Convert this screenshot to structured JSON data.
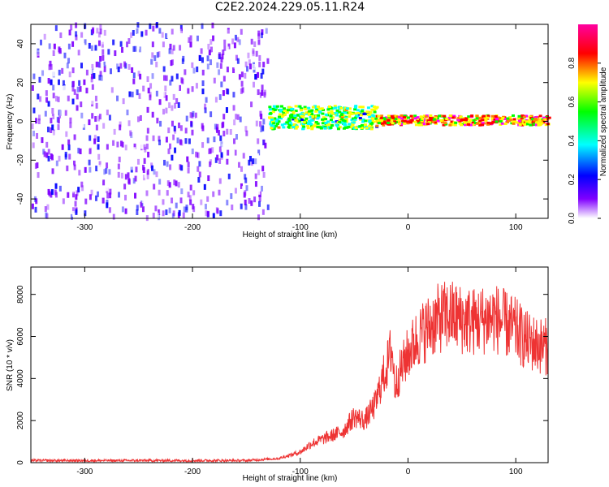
{
  "title": "C2E2.2024.229.05.11.R24",
  "chart_data": [
    {
      "type": "heatmap",
      "xlabel": "Height of straight line (km)",
      "ylabel": "Frequency (Hz)",
      "xlim": [
        -350,
        130
      ],
      "ylim": [
        -50,
        50
      ],
      "x_ticks": [
        -300,
        -200,
        -100,
        0,
        100
      ],
      "y_ticks": [
        -40,
        -20,
        0,
        20,
        40
      ],
      "colorbar": {
        "label": "Normalized spectral amplitude",
        "range": [
          0,
          1
        ],
        "ticks": [
          0.0,
          0.2,
          0.4,
          0.6,
          0.8
        ],
        "colors": [
          "#ffffff",
          "#8000ff",
          "#0000ff",
          "#00ffff",
          "#00ff00",
          "#ffff00",
          "#ff8000",
          "#ff0000",
          "#ff00ff"
        ]
      },
      "regions": [
        {
          "x_range": [
            -350,
            -130
          ],
          "freq_range": [
            -50,
            50
          ],
          "amplitude": [
            0.0,
            0.25
          ],
          "pattern": "scattered noise"
        },
        {
          "x_range": [
            -130,
            -30
          ],
          "freq_range": [
            -4,
            8
          ],
          "amplitude": [
            0.3,
            0.7
          ],
          "pattern": "signal band"
        },
        {
          "x_range": [
            -30,
            130
          ],
          "freq_range": [
            -2,
            3
          ],
          "amplitude": [
            0.5,
            1.0
          ],
          "pattern": "narrow signal line near 0 Hz"
        }
      ],
      "grid": false
    },
    {
      "type": "line",
      "xlabel": "Height of straight line (km)",
      "ylabel": "SNR (10 * v/v)",
      "xlim": [
        -350,
        130
      ],
      "ylim": [
        0,
        9300
      ],
      "x_ticks": [
        -300,
        -200,
        -100,
        0,
        100
      ],
      "y_ticks": [
        0,
        2000,
        4000,
        6000,
        8000
      ],
      "series": [
        {
          "color": "#ee3333",
          "x": [
            -350,
            -300,
            -250,
            -200,
            -150,
            -120,
            -100,
            -90,
            -80,
            -70,
            -60,
            -50,
            -40,
            -30,
            -25,
            -20,
            -15,
            -12,
            -10,
            0,
            10,
            20,
            30,
            40,
            50,
            60,
            70,
            80,
            90,
            100,
            110,
            120,
            130
          ],
          "y": [
            100,
            100,
            100,
            100,
            100,
            200,
            500,
            900,
            1100,
            1300,
            1500,
            2200,
            2000,
            2800,
            3800,
            4500,
            5500,
            3500,
            4000,
            5200,
            6000,
            6500,
            6900,
            7000,
            6800,
            6700,
            6800,
            6900,
            6600,
            6300,
            5800,
            5600,
            5500
          ]
        }
      ],
      "grid": false
    }
  ]
}
